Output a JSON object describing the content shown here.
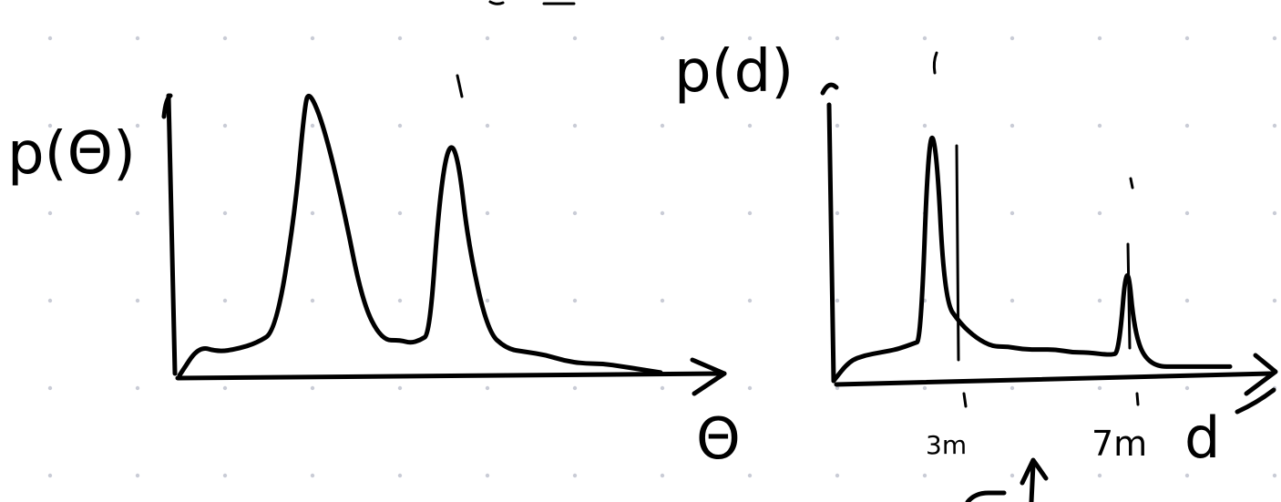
{
  "page": {
    "background": "#ffffff",
    "ink_color": "#000000",
    "grid_dot_color": "#c9ccd6"
  },
  "chart_data": [
    {
      "type": "line",
      "title": "",
      "xlabel": "Θ",
      "ylabel": "p(Θ)",
      "grid": false,
      "series": [
        {
          "name": "",
          "x": [
            0,
            4,
            8,
            12,
            16,
            20,
            24,
            26,
            27,
            30,
            34,
            38,
            42,
            46,
            48,
            50,
            52,
            54,
            56,
            58,
            60,
            64,
            68,
            72,
            76,
            80,
            84,
            88,
            92,
            96,
            100
          ],
          "y": [
            0,
            10,
            8,
            9,
            11,
            15,
            55,
            92,
            97,
            85,
            58,
            25,
            12,
            12,
            11,
            12,
            14,
            60,
            80,
            74,
            45,
            15,
            9,
            8,
            7,
            5,
            4,
            4,
            3,
            2,
            1
          ]
        }
      ]
    },
    {
      "type": "line",
      "title": "",
      "xlabel": "d",
      "ylabel": "p(d)",
      "grid": false,
      "tick_labels": [
        "3m",
        "7m"
      ],
      "series": [
        {
          "name": "",
          "x": [
            0,
            4,
            8,
            12,
            16,
            20,
            22,
            24,
            26,
            28,
            32,
            36,
            40,
            44,
            48,
            52,
            56,
            60,
            64,
            70,
            72,
            74,
            76,
            80,
            88,
            96,
            100
          ],
          "y": [
            0,
            7,
            9,
            10,
            11,
            13,
            14,
            88,
            82,
            28,
            20,
            15,
            12,
            12,
            11,
            11,
            11,
            10,
            10,
            9,
            10,
            45,
            15,
            5,
            5,
            5,
            5
          ]
        }
      ]
    }
  ],
  "annotations": {
    "arrow_below": "↑"
  }
}
